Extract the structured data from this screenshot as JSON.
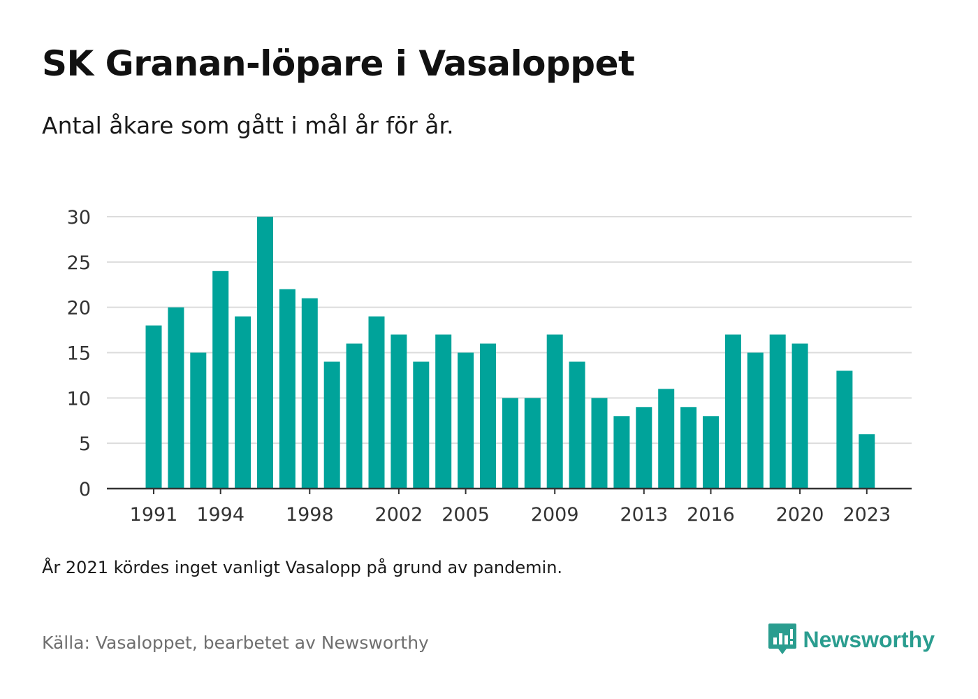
{
  "title": "SK Granan-löpare i Vasaloppet",
  "subtitle": "Antal åkare som gått i mål år för år.",
  "note": "År 2021 kördes inget vanligt Vasalopp på grund av pandemin.",
  "source": "Källa: Vasaloppet, bearbetet av Newsworthy",
  "brand": {
    "name": "Newsworthy",
    "icon": "newsworthy-logo-icon"
  },
  "colors": {
    "bar": "#00a39a",
    "grid": "#dcdcdc",
    "axis": "#333333",
    "brand": "#2a9d8f"
  },
  "chart_data": {
    "type": "bar",
    "title": "SK Granan-löpare i Vasaloppet",
    "xlabel": "",
    "ylabel": "",
    "ylim": [
      0,
      30
    ],
    "yticks": [
      0,
      5,
      10,
      15,
      20,
      25,
      30
    ],
    "xticks": [
      1991,
      1994,
      1998,
      2002,
      2005,
      2009,
      2013,
      2016,
      2020,
      2023
    ],
    "grid": true,
    "categories": [
      1991,
      1992,
      1993,
      1994,
      1995,
      1996,
      1997,
      1998,
      1999,
      2000,
      2001,
      2002,
      2003,
      2004,
      2005,
      2006,
      2007,
      2008,
      2009,
      2010,
      2011,
      2012,
      2013,
      2014,
      2015,
      2016,
      2017,
      2018,
      2019,
      2020,
      2021,
      2022,
      2023
    ],
    "values": [
      18,
      20,
      15,
      24,
      19,
      30,
      22,
      21,
      14,
      16,
      19,
      17,
      14,
      17,
      15,
      16,
      10,
      10,
      17,
      14,
      10,
      8,
      9,
      11,
      9,
      8,
      17,
      15,
      17,
      16,
      null,
      13,
      6
    ]
  }
}
